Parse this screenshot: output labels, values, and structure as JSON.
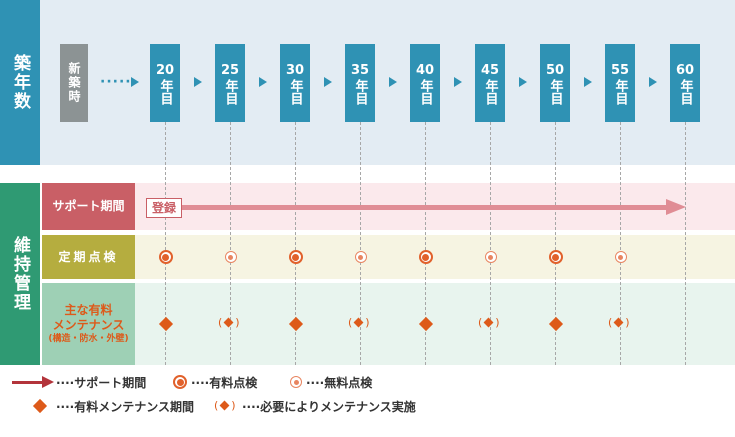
{
  "section_labels": {
    "age": "築年数",
    "maintenance": "維持管理"
  },
  "new_build": {
    "label": "新築時"
  },
  "year_suffix": "年目",
  "years": [
    "20",
    "25",
    "30",
    "35",
    "40",
    "45",
    "50",
    "55",
    "60"
  ],
  "rows": {
    "support": {
      "label": "サポート期間",
      "badge": "登録"
    },
    "inspection": {
      "label": "定期点検"
    },
    "maintenance": {
      "label_line1": "主な有料",
      "label_line2": "メンテナンス",
      "label_line3": "(構造・防水・外壁)"
    }
  },
  "inspections": [
    "paid",
    "free",
    "paid",
    "free",
    "paid",
    "free",
    "paid",
    "free"
  ],
  "maintenances": [
    "paid",
    "optional",
    "paid",
    "optional",
    "paid",
    "optional",
    "paid",
    "optional"
  ],
  "legend": {
    "support": "····サポート期間",
    "paid_inspection": "····有料点検",
    "free_inspection": "····無料点検",
    "paid_maintenance": "····有料メンテナンス期間",
    "optional_maintenance": "····必要によりメンテナンス実施"
  },
  "colors": {
    "teal": "#2f92b4",
    "green": "#2f9a73",
    "red_label": "#c95f66",
    "olive": "#b5ad3f",
    "orange": "#dd5a1a",
    "arrow": "#e08d95",
    "legend_arrow": "#b3343b"
  }
}
